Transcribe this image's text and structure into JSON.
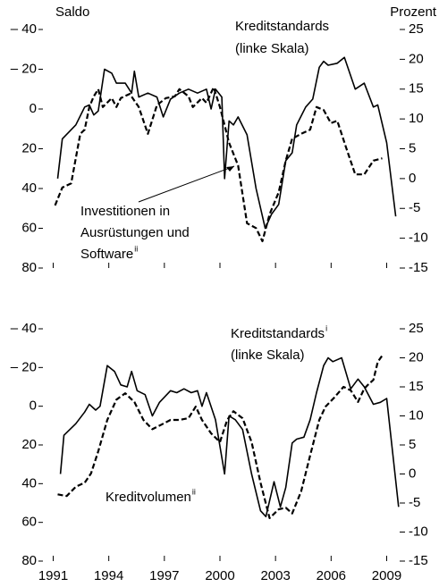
{
  "chart_data": [
    {
      "type": "line",
      "y_label": "Saldo",
      "y2_label": "Prozent",
      "xlim": [
        1990.3,
        2009.7
      ],
      "ylim": [
        -40,
        80
      ],
      "y_inverted": true,
      "yticks": [
        {
          "value": -40,
          "label": "– 40"
        },
        {
          "value": -20,
          "label": "– 20"
        },
        0,
        20,
        40,
        60,
        80
      ],
      "y2lim": [
        -15,
        25
      ],
      "y2ticks": [
        25,
        20,
        15,
        10,
        5,
        0,
        -5,
        -10,
        -15
      ],
      "annotations": [
        {
          "text": "Kreditstandards"
        },
        {
          "text": "(linke Skala)"
        },
        {
          "text": "Investitionen in"
        },
        {
          "text": "Ausrüstungen und"
        },
        {
          "text": "Software",
          "sup": "ii"
        }
      ],
      "series": [
        {
          "color": "#000000",
          "dashed": false,
          "axis": "y",
          "x": [
            1991.24,
            1991.49,
            1992.22,
            1992.7,
            1992.95,
            1993.19,
            1993.43,
            1993.77,
            1994.16,
            1994.41,
            1994.89,
            1995.23,
            1995.38,
            1995.62,
            1996.11,
            1996.6,
            1996.94,
            1997.33,
            1997.81,
            1998.3,
            1998.79,
            1999.27,
            1999.52,
            1999.76,
            2000.1,
            2000.25,
            2000.49,
            2000.73,
            2000.98,
            2001.46,
            2001.95,
            2002.44,
            2002.78,
            2003.17,
            2003.55,
            2003.9,
            2004.14,
            2004.63,
            2005.01,
            2005.36,
            2005.6,
            2005.84,
            2006.33,
            2006.72,
            2007.3,
            2007.79,
            2008.28,
            2008.52,
            2009.0,
            2009.49
          ],
          "values": [
            35,
            15,
            8,
            -1,
            -2,
            3,
            1,
            -20,
            -18,
            -13,
            -13,
            -8,
            -19,
            -6,
            -8,
            -6,
            4,
            -5,
            -8,
            -10,
            -8,
            -10,
            0,
            -10,
            -6,
            35,
            6,
            8,
            4,
            13,
            40,
            60,
            53,
            48,
            26,
            22,
            8,
            -1,
            -5,
            -21,
            -24,
            -22,
            -23,
            -26,
            -10,
            -13,
            -1,
            -2,
            17,
            54
          ]
        },
        {
          "color": "#000000",
          "dashed": true,
          "axis": "y2",
          "x": [
            1991.1,
            1991.49,
            1991.97,
            1992.46,
            1992.7,
            1992.95,
            1993.19,
            1993.43,
            1993.68,
            1994.16,
            1994.41,
            1994.65,
            1995.13,
            1995.62,
            1996.11,
            1996.6,
            1997.08,
            1997.57,
            1997.81,
            1998.3,
            1998.54,
            1999.03,
            1999.27,
            1999.66,
            2000.0,
            2000.49,
            2000.98,
            2001.46,
            2001.95,
            2002.29,
            2002.68,
            2003.17,
            2003.55,
            2003.9,
            2004.38,
            2004.87,
            2005.21,
            2005.6,
            2005.99,
            2006.33,
            2006.81,
            2007.3,
            2007.79,
            2008.28,
            2008.76
          ],
          "values": [
            -4.5,
            -1.5,
            -0.8,
            7.5,
            8.2,
            12,
            13.8,
            15,
            12,
            13.5,
            12,
            13.5,
            14.2,
            12,
            7.5,
            12.3,
            13.5,
            13.8,
            15,
            13.8,
            12,
            13.5,
            12.7,
            15.3,
            12,
            6,
            2.2,
            -7.5,
            -8.3,
            -10.5,
            -6,
            -2.3,
            3,
            6.7,
            7.5,
            8.2,
            12,
            11.5,
            9.3,
            9.7,
            5.2,
            0.7,
            0.7,
            3,
            3.4
          ]
        }
      ]
    },
    {
      "type": "line",
      "xlim": [
        1990.3,
        2009.7
      ],
      "xticks": [
        1991,
        1994,
        1997,
        2000,
        2003,
        2006,
        2009
      ],
      "ylim": [
        -40,
        80
      ],
      "y_inverted": true,
      "yticks": [
        {
          "value": -40,
          "label": "– 40"
        },
        {
          "value": -20,
          "label": "– 20"
        },
        0,
        20,
        40,
        60,
        80
      ],
      "y2lim": [
        -15,
        25
      ],
      "y2ticks": [
        25,
        20,
        15,
        10,
        5,
        0,
        -5,
        -10,
        -15
      ],
      "annotations": [
        {
          "text": "Kreditstandards",
          "sup": "i"
        },
        {
          "text": "(linke Skala)"
        },
        {
          "text": "Kreditvolumen",
          "sup": "ii"
        }
      ],
      "series": [
        {
          "color": "#000000",
          "dashed": false,
          "axis": "y",
          "x": [
            1991.39,
            1991.58,
            1992.22,
            1992.7,
            1992.95,
            1993.29,
            1993.53,
            1993.92,
            1994.31,
            1994.65,
            1994.99,
            1995.23,
            1995.53,
            1995.96,
            1996.35,
            1996.74,
            1997.33,
            1997.67,
            1998.06,
            1998.45,
            1998.79,
            1999.03,
            1999.27,
            1999.76,
            2000.25,
            2000.49,
            2000.83,
            2001.22,
            2001.71,
            2002.19,
            2002.48,
            2002.92,
            2003.26,
            2003.55,
            2003.9,
            2004.14,
            2004.53,
            2004.87,
            2005.21,
            2005.6,
            2005.84,
            2006.09,
            2006.57,
            2007.06,
            2007.45,
            2007.79,
            2008.28,
            2008.66,
            2009.0,
            2009.39,
            2009.64
          ],
          "values": [
            35,
            15,
            9,
            3,
            -1,
            2,
            0,
            -21,
            -18,
            -11,
            -10,
            -18,
            -8,
            -6,
            5,
            -2,
            -8,
            -7,
            -9,
            -7,
            -8,
            0,
            -7,
            7,
            35,
            5,
            7,
            12,
            35,
            54,
            57,
            39,
            52,
            42,
            19,
            17,
            16,
            7,
            -7,
            -21,
            -25,
            -23,
            -25,
            -9,
            -14,
            -10,
            -1,
            -2,
            -4,
            30,
            52
          ]
        },
        {
          "color": "#000000",
          "dashed": true,
          "axis": "y2",
          "x": [
            1991.24,
            1991.73,
            1992.22,
            1992.7,
            1993.04,
            1993.43,
            1993.92,
            1994.41,
            1994.89,
            1995.38,
            1995.87,
            1996.35,
            1996.84,
            1997.33,
            1997.81,
            1998.3,
            1998.69,
            1999.03,
            1999.52,
            2000.0,
            2000.39,
            2000.73,
            2001.22,
            2001.71,
            2002.19,
            2002.68,
            2003.17,
            2003.55,
            2003.9,
            2004.38,
            2004.87,
            2005.36,
            2005.7,
            2006.18,
            2006.67,
            2007.06,
            2007.45,
            2007.79,
            2008.03,
            2008.28,
            2008.52,
            2008.76
          ],
          "values": [
            -3.5,
            -3.8,
            -2.2,
            -1.5,
            0.1,
            3.9,
            9.3,
            12.8,
            13.9,
            12.4,
            9.3,
            7.7,
            8.5,
            9.3,
            9.3,
            9.6,
            11.6,
            9.3,
            7,
            5.5,
            9.3,
            10.8,
            9.6,
            5.5,
            -1.5,
            -7.6,
            -6.1,
            -5.8,
            -6.8,
            -3,
            3.2,
            9.3,
            11.6,
            13.2,
            15,
            14.4,
            12.4,
            14.7,
            15.5,
            16.2,
            19.3,
            20.4
          ]
        }
      ]
    }
  ]
}
